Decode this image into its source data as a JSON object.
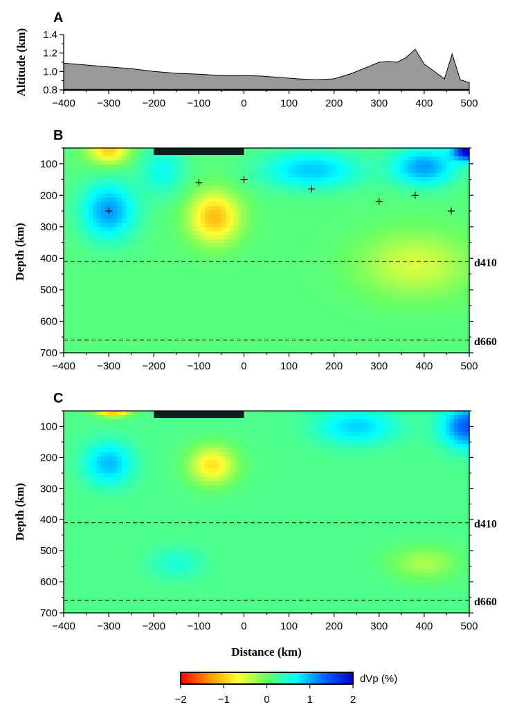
{
  "chart_data": [
    {
      "id": "A",
      "type": "area",
      "panel_label": "A",
      "ylabel": "Altitude (km)",
      "xlim": [
        -400,
        500
      ],
      "ylim": [
        0.8,
        1.4
      ],
      "xticks": [
        -400,
        -300,
        -200,
        -100,
        0,
        100,
        200,
        300,
        400,
        500
      ],
      "yticks": [
        0.8,
        1.0,
        1.2,
        1.4
      ],
      "fill_color": "#999999",
      "x": [
        -400,
        -350,
        -300,
        -250,
        -200,
        -150,
        -100,
        -50,
        0,
        40,
        80,
        120,
        160,
        200,
        240,
        280,
        300,
        320,
        340,
        360,
        380,
        400,
        420,
        445,
        462,
        480,
        500
      ],
      "y": [
        1.09,
        1.07,
        1.05,
        1.03,
        1.0,
        0.98,
        0.97,
        0.955,
        0.955,
        0.95,
        0.935,
        0.92,
        0.91,
        0.92,
        0.98,
        1.06,
        1.1,
        1.11,
        1.1,
        1.15,
        1.24,
        1.08,
        1.01,
        0.92,
        1.19,
        0.91,
        0.88
      ]
    },
    {
      "id": "B",
      "type": "heatmap",
      "panel_label": "B",
      "ylabel": "Depth (km)",
      "xlim": [
        -400,
        500
      ],
      "ylim": [
        700,
        50
      ],
      "xticks": [
        -400,
        -300,
        -200,
        -100,
        0,
        100,
        200,
        300,
        400,
        500
      ],
      "yticks": [
        100,
        200,
        300,
        400,
        500,
        600,
        700
      ],
      "discontinuities": [
        {
          "label": "d410",
          "depth": 410
        },
        {
          "label": "d660",
          "depth": 660
        }
      ],
      "bar_x_range": [
        -200,
        0
      ],
      "background_dvp": 0.1,
      "anomalies": [
        {
          "x": -300,
          "depth": 55,
          "dvp": -1.1,
          "sx": 45,
          "sy": 45
        },
        {
          "x": -300,
          "depth": 250,
          "dvp": 1.0,
          "sx": 60,
          "sy": 90
        },
        {
          "x": -65,
          "depth": 270,
          "dvp": -1.2,
          "sx": 55,
          "sy": 80
        },
        {
          "x": 150,
          "depth": 120,
          "dvp": 0.8,
          "sx": 110,
          "sy": 60
        },
        {
          "x": 500,
          "depth": 60,
          "dvp": 2.0,
          "sx": 35,
          "sy": 30
        },
        {
          "x": 400,
          "depth": 110,
          "dvp": 1.0,
          "sx": 70,
          "sy": 60
        },
        {
          "x": 380,
          "depth": 420,
          "dvp": -0.6,
          "sx": 120,
          "sy": 100
        },
        {
          "x": -180,
          "depth": 120,
          "dvp": 0.5,
          "sx": 50,
          "sy": 80
        }
      ],
      "markers": [
        {
          "x": -300,
          "depth": 250
        },
        {
          "x": -100,
          "depth": 160
        },
        {
          "x": 0,
          "depth": 150
        },
        {
          "x": 150,
          "depth": 180
        },
        {
          "x": 300,
          "depth": 220
        },
        {
          "x": 380,
          "depth": 200
        },
        {
          "x": 460,
          "depth": 250
        }
      ]
    },
    {
      "id": "C",
      "type": "heatmap",
      "panel_label": "C",
      "ylabel": "Depth (km)",
      "xlabel": "Distance (km)",
      "xlim": [
        -400,
        500
      ],
      "ylim": [
        700,
        50
      ],
      "xticks": [
        -400,
        -300,
        -200,
        -100,
        0,
        100,
        200,
        300,
        400,
        500
      ],
      "yticks": [
        100,
        200,
        300,
        400,
        500,
        600,
        700
      ],
      "discontinuities": [
        {
          "label": "d410",
          "depth": 410
        },
        {
          "label": "d660",
          "depth": 660
        }
      ],
      "bar_x_range": [
        -200,
        0
      ],
      "background_dvp": 0.15,
      "anomalies": [
        {
          "x": -290,
          "depth": 50,
          "dvp": -1.3,
          "sx": 35,
          "sy": 18
        },
        {
          "x": -300,
          "depth": 220,
          "dvp": 0.8,
          "sx": 55,
          "sy": 70
        },
        {
          "x": -70,
          "depth": 225,
          "dvp": -1.0,
          "sx": 50,
          "sy": 60
        },
        {
          "x": 250,
          "depth": 100,
          "dvp": 0.7,
          "sx": 90,
          "sy": 60
        },
        {
          "x": 500,
          "depth": 100,
          "dvp": 1.3,
          "sx": 60,
          "sy": 70
        },
        {
          "x": 400,
          "depth": 540,
          "dvp": -0.45,
          "sx": 70,
          "sy": 50
        },
        {
          "x": -150,
          "depth": 540,
          "dvp": 0.35,
          "sx": 60,
          "sy": 50
        }
      ],
      "markers": []
    }
  ],
  "colorbar": {
    "title": "dVp (%)",
    "range": [
      -2,
      2
    ],
    "ticks": [
      -2,
      -1,
      0,
      1,
      2
    ],
    "tick_labels": [
      "−2",
      "−1",
      "0",
      "1",
      "2"
    ],
    "colors": [
      "#ff0000",
      "#ff9900",
      "#ffff33",
      "#66ff66",
      "#00ffff",
      "#0066ff",
      "#0000cc"
    ]
  }
}
